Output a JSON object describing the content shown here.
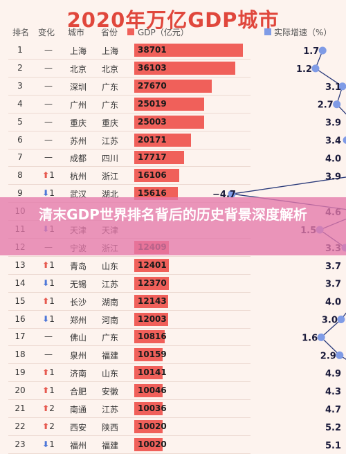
{
  "chart_data": {
    "type": "bar",
    "title": "2020年万亿GDP城市",
    "columns": [
      "排名",
      "变化",
      "城市",
      "省份",
      "GDP（亿元）",
      "实际增速（%）"
    ],
    "series": [
      {
        "name": "GDP（亿元）",
        "color": "#f0605a"
      },
      {
        "name": "实际增速（%）",
        "color": "#7f9be6"
      }
    ],
    "rows": [
      {
        "rank": "1",
        "change": "—",
        "dir": "",
        "city": "上海",
        "province": "上海",
        "gdp": 38701,
        "growth": 1.7
      },
      {
        "rank": "2",
        "change": "—",
        "dir": "",
        "city": "北京",
        "province": "北京",
        "gdp": 36103,
        "growth": 1.2
      },
      {
        "rank": "3",
        "change": "—",
        "dir": "",
        "city": "深圳",
        "province": "广东",
        "gdp": 27670,
        "growth": 3.1
      },
      {
        "rank": "4",
        "change": "—",
        "dir": "",
        "city": "广州",
        "province": "广东",
        "gdp": 25019,
        "growth": 2.7
      },
      {
        "rank": "5",
        "change": "—",
        "dir": "",
        "city": "重庆",
        "province": "重庆",
        "gdp": 25003,
        "growth": 3.9
      },
      {
        "rank": "6",
        "change": "—",
        "dir": "",
        "city": "苏州",
        "province": "江苏",
        "gdp": 20171,
        "growth": 3.4
      },
      {
        "rank": "7",
        "change": "—",
        "dir": "",
        "city": "成都",
        "province": "四川",
        "gdp": 17717,
        "growth": 4.0
      },
      {
        "rank": "8",
        "change": "1",
        "dir": "up",
        "city": "杭州",
        "province": "浙江",
        "gdp": 16106,
        "growth": 3.9
      },
      {
        "rank": "9",
        "change": "1",
        "dir": "down",
        "city": "武汉",
        "province": "湖北",
        "gdp": 15616,
        "growth": -4.7
      },
      {
        "rank": "10",
        "change": "",
        "dir": "",
        "city": "",
        "province": "",
        "gdp": null,
        "growth": 4.6
      },
      {
        "rank": "11",
        "change": "1",
        "dir": "down",
        "city": "天津",
        "province": "天津",
        "gdp": null,
        "growth": 1.5
      },
      {
        "rank": "12",
        "change": "—",
        "dir": "",
        "city": "宁波",
        "province": "浙江",
        "gdp": 12409,
        "growth": 3.3
      },
      {
        "rank": "13",
        "change": "1",
        "dir": "up",
        "city": "青岛",
        "province": "山东",
        "gdp": 12401,
        "growth": 3.7
      },
      {
        "rank": "14",
        "change": "1",
        "dir": "down",
        "city": "无锡",
        "province": "江苏",
        "gdp": 12370,
        "growth": 3.7
      },
      {
        "rank": "15",
        "change": "1",
        "dir": "up",
        "city": "长沙",
        "province": "湖南",
        "gdp": 12143,
        "growth": 4.0
      },
      {
        "rank": "16",
        "change": "1",
        "dir": "down",
        "city": "郑州",
        "province": "河南",
        "gdp": 12003,
        "growth": 3.0
      },
      {
        "rank": "17",
        "change": "—",
        "dir": "",
        "city": "佛山",
        "province": "广东",
        "gdp": 10816,
        "growth": 1.6
      },
      {
        "rank": "18",
        "change": "—",
        "dir": "",
        "city": "泉州",
        "province": "福建",
        "gdp": 10159,
        "growth": 2.9
      },
      {
        "rank": "19",
        "change": "1",
        "dir": "up",
        "city": "济南",
        "province": "山东",
        "gdp": 10141,
        "growth": 4.9
      },
      {
        "rank": "20",
        "change": "1",
        "dir": "up",
        "city": "合肥",
        "province": "安徽",
        "gdp": 10046,
        "growth": 4.3
      },
      {
        "rank": "21",
        "change": "2",
        "dir": "up",
        "city": "南通",
        "province": "江苏",
        "gdp": 10036,
        "growth": 4.7
      },
      {
        "rank": "22",
        "change": "2",
        "dir": "up",
        "city": "西安",
        "province": "陕西",
        "gdp": 10020,
        "growth": 5.2
      },
      {
        "rank": "23",
        "change": "1",
        "dir": "down",
        "city": "福州",
        "province": "福建",
        "gdp": 10020,
        "growth": 5.1
      }
    ],
    "gdp_range": [
      0,
      40000
    ],
    "growth_range": [
      -5,
      6
    ]
  },
  "banner": {
    "text": "清末GDP世界排名背后的历史背景深度解析"
  }
}
